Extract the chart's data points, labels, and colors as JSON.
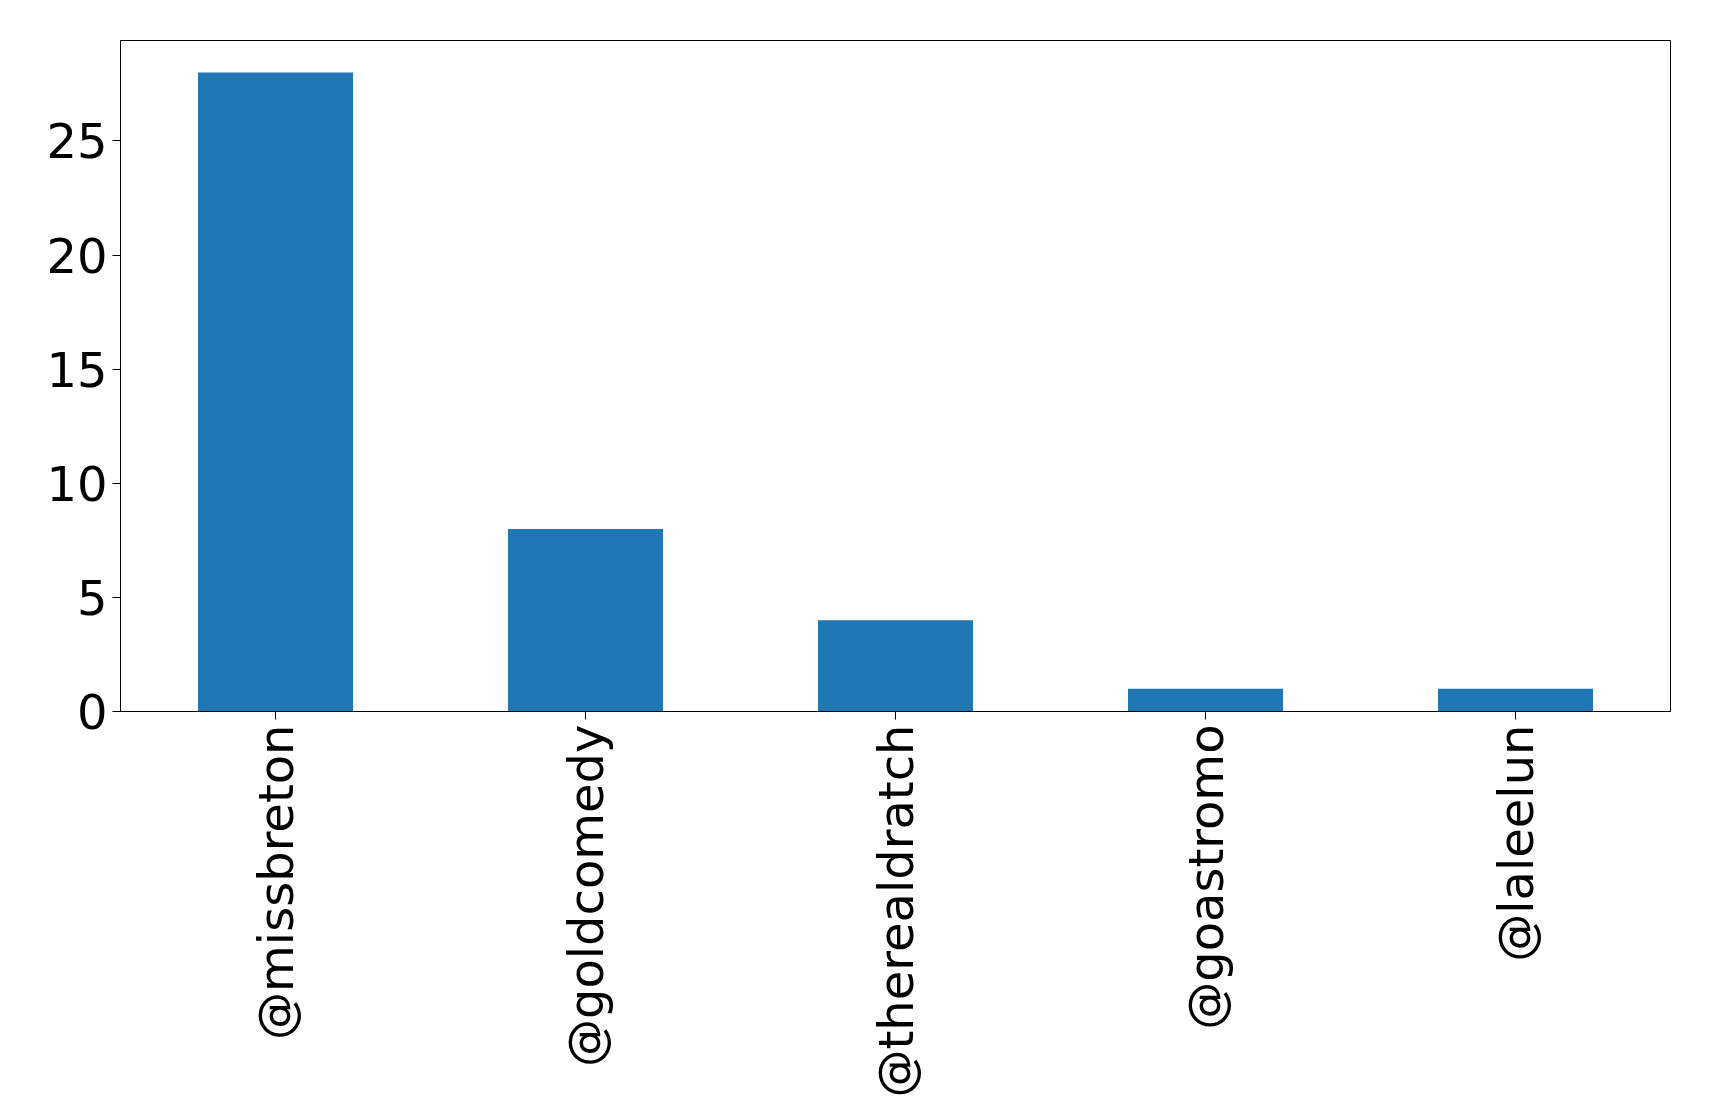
{
  "chart_data": {
    "type": "bar",
    "categories": [
      "@missbreton",
      "@goldcomedy",
      "@therealdratch",
      "@goastromo",
      "@laleelun"
    ],
    "values": [
      28,
      8,
      4,
      1,
      1
    ],
    "color": "#1f77b4",
    "ylim": [
      0,
      29.4
    ],
    "yticks": [
      0,
      5,
      10,
      15,
      20,
      25
    ],
    "grid": false
  }
}
